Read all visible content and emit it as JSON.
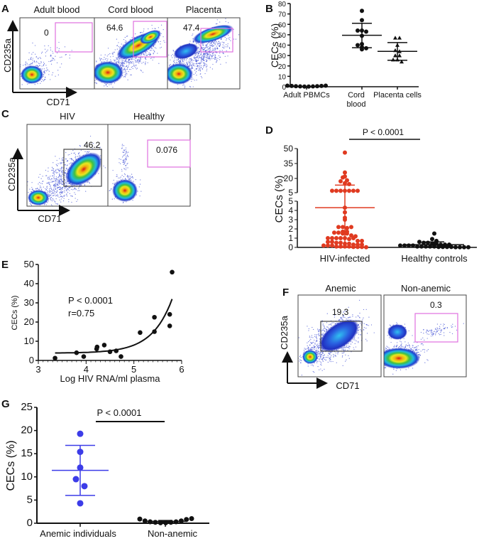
{
  "colors": {
    "gate_pink": "#e070e0",
    "hiv_red": "#e03a20",
    "anemic_blue": "#3c3ce8",
    "black": "#111111"
  },
  "panels": {
    "A": {
      "letter": "A",
      "conditions": [
        "Adult blood",
        "Cord blood",
        "Placenta"
      ],
      "gates": [
        "0",
        "64.6",
        "47.4"
      ],
      "y_marker": "CD235a",
      "x_marker": "CD71"
    },
    "B": {
      "letter": "B"
    },
    "C": {
      "letter": "C",
      "conditions": [
        "HIV",
        "Healthy"
      ],
      "gates": [
        "46.2",
        "0.076"
      ],
      "y_marker": "CD235a",
      "x_marker": "CD71"
    },
    "D": {
      "letter": "D"
    },
    "E": {
      "letter": "E"
    },
    "F": {
      "letter": "F",
      "conditions": [
        "Anemic",
        "Non-anemic"
      ],
      "gates": [
        "19,3",
        "0.3"
      ],
      "y_marker": "CD235a",
      "x_marker": "CD71"
    },
    "G": {
      "letter": "G"
    }
  },
  "chart_data": [
    {
      "panel": "B",
      "type": "scatter",
      "subtype": "dot-plot",
      "ylabel": "CECs (%)",
      "ylim": [
        0,
        80
      ],
      "yticks": [
        0,
        10,
        20,
        30,
        40,
        50,
        60,
        70,
        80
      ],
      "categories": [
        "Adult PBMCs",
        "Cord blood",
        "Placenta cells"
      ],
      "category_lines": [
        [
          "Adult PBMCs"
        ],
        [
          "Cord",
          "blood"
        ],
        [
          "Placenta cells"
        ]
      ],
      "series": [
        {
          "name": "Adult PBMCs",
          "marker": "circle",
          "values": [
            1.0,
            0.8,
            0.5,
            0.3,
            0.2,
            0.2,
            0.3,
            0.5,
            0.8,
            1.0
          ],
          "mean": 0.5,
          "sd": [
            0.2,
            0.8
          ]
        },
        {
          "name": "Cord blood",
          "marker": "circle",
          "values": [
            73,
            64,
            54,
            54,
            53,
            49,
            41,
            40,
            38,
            37,
            36
          ],
          "mean": 49.5,
          "sd": [
            37.5,
            61
          ]
        },
        {
          "name": "Placenta cells",
          "marker": "triangle",
          "values": [
            47,
            47,
            40,
            35,
            34,
            30,
            30,
            26,
            26,
            24
          ],
          "mean": 34,
          "sd": [
            25.5,
            42.5
          ]
        }
      ]
    },
    {
      "panel": "D",
      "type": "scatter",
      "subtype": "dot-plot-broken-axis",
      "ylabel": "CECs (%)",
      "yticks_lower": [
        0,
        1,
        2,
        3,
        4,
        5
      ],
      "yticks_upper": [
        5,
        20,
        35,
        50
      ],
      "categories": [
        "HIV-infected",
        "Healthy controls"
      ],
      "annotation": "P < 0.0001",
      "series": [
        {
          "name": "HIV-infected",
          "color": "#e03a20",
          "values": [
            46,
            26,
            22,
            21,
            18,
            17,
            15,
            14,
            7,
            7,
            7,
            7,
            7,
            7,
            7,
            4.3,
            3.8,
            3.2,
            3.0,
            2.2,
            2.2,
            2.1,
            2.2,
            1.7,
            1.6,
            1.7,
            1.6,
            1.5,
            1.5,
            1.3,
            1.2,
            1.0,
            1.0,
            1.0,
            1.0,
            1.0,
            0.9,
            1.0,
            0.7,
            0.7,
            0.6,
            0.6,
            0.5,
            0.5,
            0.4,
            0.4,
            0.3,
            0.3,
            0.3,
            0.2,
            0.2,
            0.2,
            0.1,
            0.1,
            0.1,
            0.1,
            0.05,
            0.05,
            0.05,
            0.02
          ],
          "mean": 4.3,
          "sd": [
            0,
            13
          ]
        },
        {
          "name": "Healthy controls",
          "color": "#111111",
          "values": [
            1.5,
            0.9,
            0.7,
            0.6,
            0.5,
            0.5,
            0.4,
            0.4,
            0.3,
            0.3,
            0.3,
            0.2,
            0.2,
            0.2,
            0.2,
            0.1,
            0.1,
            0.1,
            0.1,
            0.1,
            0.05,
            0.05,
            0.05,
            0.05,
            0.02,
            0.02,
            0.02,
            0.02
          ],
          "mean": 0.3,
          "sd": [
            0,
            0.6
          ]
        }
      ]
    },
    {
      "panel": "E",
      "type": "scatter",
      "xlabel": "Log HIV RNA/ml plasma",
      "ylabel": "CECs (%)",
      "xlim": [
        3,
        6
      ],
      "ylim": [
        0,
        50
      ],
      "xticks": [
        3,
        4,
        5,
        6
      ],
      "yticks": [
        0,
        10,
        20,
        30,
        40,
        50
      ],
      "annotations": [
        "P < 0.0001",
        "r=0.75"
      ],
      "points": [
        [
          3.35,
          1.2
        ],
        [
          3.8,
          4
        ],
        [
          3.95,
          2
        ],
        [
          4.22,
          6
        ],
        [
          4.23,
          7
        ],
        [
          4.38,
          8
        ],
        [
          4.5,
          4.5
        ],
        [
          4.63,
          5
        ],
        [
          4.73,
          2
        ],
        [
          5.13,
          14.5
        ],
        [
          5.43,
          22.5
        ],
        [
          5.43,
          15
        ],
        [
          5.75,
          24
        ],
        [
          5.75,
          18
        ],
        [
          5.8,
          46
        ]
      ],
      "fit": {
        "type": "exponential",
        "x_range": [
          3.35,
          5.8
        ]
      }
    },
    {
      "panel": "G",
      "type": "scatter",
      "subtype": "dot-plot",
      "ylabel": "CECs (%)",
      "ylim": [
        0,
        25
      ],
      "yticks": [
        0,
        5,
        10,
        15,
        20,
        25
      ],
      "categories": [
        "Anemic individuals",
        "Non-anemic"
      ],
      "annotation": "P < 0.0001",
      "series": [
        {
          "name": "Anemic individuals",
          "color": "#3c3ce8",
          "values": [
            19.3,
            15.4,
            12,
            9.5,
            8,
            4.3
          ],
          "mean": 11.4,
          "sd": [
            6.0,
            16.8
          ]
        },
        {
          "name": "Non-anemic",
          "color": "#111111",
          "values": [
            0.9,
            0.5,
            0.3,
            0.2,
            0.1,
            0.1,
            0.2,
            0.3,
            0.5,
            0.8,
            1.0
          ],
          "mean": 0.4,
          "sd": [
            0.2,
            0.6
          ]
        }
      ]
    }
  ]
}
